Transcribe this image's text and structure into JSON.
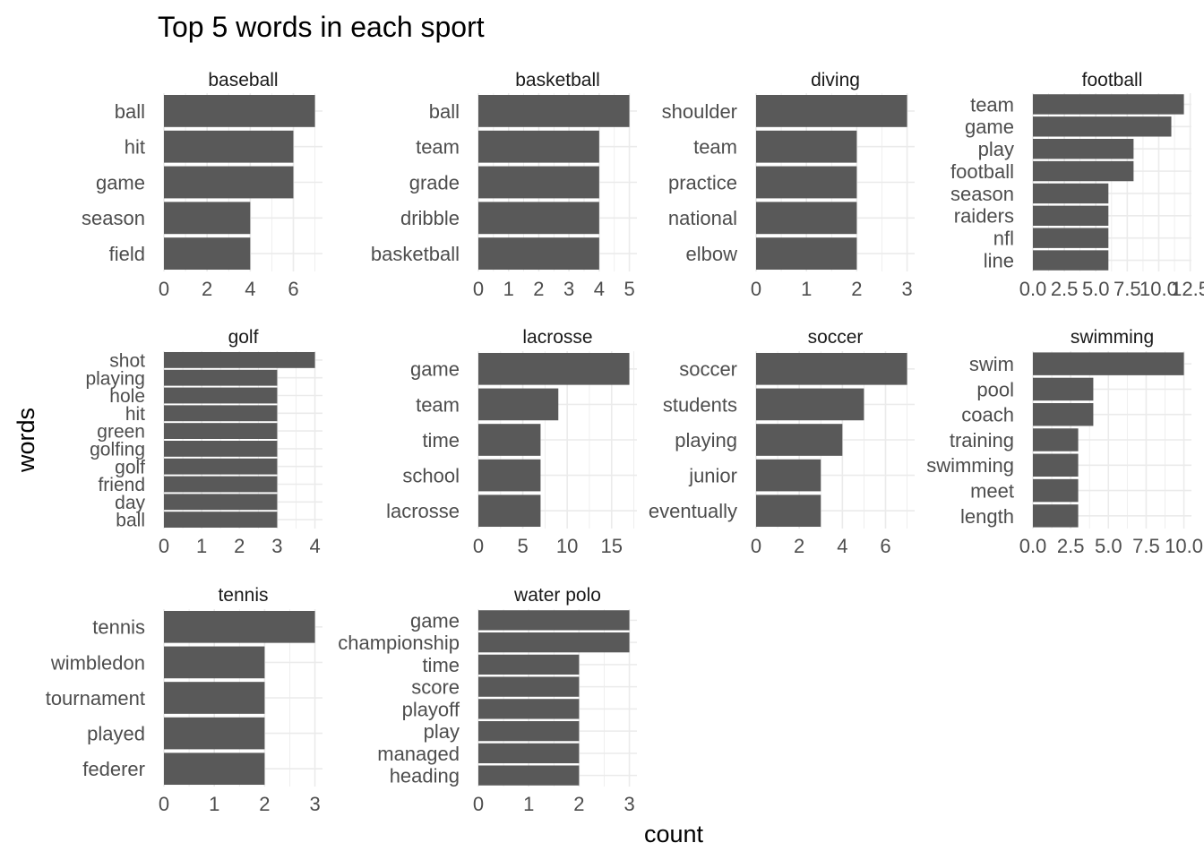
{
  "chart_data": {
    "type": "bar",
    "title": "Top 5 words in each sport",
    "xlabel": "count",
    "ylabel": "words",
    "orientation": "horizontal",
    "grid": true,
    "bar_color": "#595959",
    "grid_color": "#ebebeb",
    "panels": [
      {
        "name": "baseball",
        "xlim": [
          0,
          7.35
        ],
        "ticks": [
          "0",
          "2",
          "4",
          "6"
        ],
        "bars": [
          {
            "label": "ball",
            "value": 7
          },
          {
            "label": "hit",
            "value": 6
          },
          {
            "label": "game",
            "value": 6
          },
          {
            "label": "season",
            "value": 4
          },
          {
            "label": "field",
            "value": 4
          }
        ]
      },
      {
        "name": "basketball",
        "xlim": [
          0,
          5.25
        ],
        "ticks": [
          "0",
          "1",
          "2",
          "3",
          "4",
          "5"
        ],
        "bars": [
          {
            "label": "ball",
            "value": 5
          },
          {
            "label": "team",
            "value": 4
          },
          {
            "label": "grade",
            "value": 4
          },
          {
            "label": "dribble",
            "value": 4
          },
          {
            "label": "basketball",
            "value": 4
          }
        ]
      },
      {
        "name": "diving",
        "xlim": [
          0,
          3.15
        ],
        "ticks": [
          "0",
          "1",
          "2",
          "3"
        ],
        "bars": [
          {
            "label": "shoulder",
            "value": 3
          },
          {
            "label": "team",
            "value": 2
          },
          {
            "label": "practice",
            "value": 2
          },
          {
            "label": "national",
            "value": 2
          },
          {
            "label": "elbow",
            "value": 2
          }
        ]
      },
      {
        "name": "football",
        "xlim": [
          0,
          12.6
        ],
        "ticks": [
          "0.0",
          "2.5",
          "5.0",
          "7.5",
          "10.0",
          "12.5"
        ],
        "bars": [
          {
            "label": "team",
            "value": 12
          },
          {
            "label": "game",
            "value": 11
          },
          {
            "label": "play",
            "value": 8
          },
          {
            "label": "football",
            "value": 8
          },
          {
            "label": "season",
            "value": 6
          },
          {
            "label": "raiders",
            "value": 6
          },
          {
            "label": "nfl",
            "value": 6
          },
          {
            "label": "line",
            "value": 6
          }
        ]
      },
      {
        "name": "golf",
        "xlim": [
          0,
          4.2
        ],
        "ticks": [
          "0",
          "1",
          "2",
          "3",
          "4"
        ],
        "bars": [
          {
            "label": "shot",
            "value": 4
          },
          {
            "label": "playing",
            "value": 3
          },
          {
            "label": "hole",
            "value": 3
          },
          {
            "label": "hit",
            "value": 3
          },
          {
            "label": "green",
            "value": 3
          },
          {
            "label": "golfing",
            "value": 3
          },
          {
            "label": "golf",
            "value": 3
          },
          {
            "label": "friend",
            "value": 3
          },
          {
            "label": "day",
            "value": 3
          },
          {
            "label": "ball",
            "value": 3
          }
        ]
      },
      {
        "name": "lacrosse",
        "xlim": [
          0,
          17.85
        ],
        "ticks": [
          "0",
          "5",
          "10",
          "15"
        ],
        "bars": [
          {
            "label": "game",
            "value": 17
          },
          {
            "label": "team",
            "value": 9
          },
          {
            "label": "time",
            "value": 7
          },
          {
            "label": "school",
            "value": 7
          },
          {
            "label": "lacrosse",
            "value": 7
          }
        ]
      },
      {
        "name": "soccer",
        "xlim": [
          0,
          7.35
        ],
        "ticks": [
          "0",
          "2",
          "4",
          "6"
        ],
        "bars": [
          {
            "label": "soccer",
            "value": 7
          },
          {
            "label": "students",
            "value": 5
          },
          {
            "label": "playing",
            "value": 4
          },
          {
            "label": "junior",
            "value": 3
          },
          {
            "label": "eventually",
            "value": 3
          }
        ]
      },
      {
        "name": "swimming",
        "xlim": [
          0,
          10.5
        ],
        "ticks": [
          "0.0",
          "2.5",
          "5.0",
          "7.5",
          "10.0"
        ],
        "bars": [
          {
            "label": "swim",
            "value": 10
          },
          {
            "label": "pool",
            "value": 4
          },
          {
            "label": "coach",
            "value": 4
          },
          {
            "label": "training",
            "value": 3
          },
          {
            "label": "swimming",
            "value": 3
          },
          {
            "label": "meet",
            "value": 3
          },
          {
            "label": "length",
            "value": 3
          }
        ]
      },
      {
        "name": "tennis",
        "xlim": [
          0,
          3.15
        ],
        "ticks": [
          "0",
          "1",
          "2",
          "3"
        ],
        "bars": [
          {
            "label": "tennis",
            "value": 3
          },
          {
            "label": "wimbledon",
            "value": 2
          },
          {
            "label": "tournament",
            "value": 2
          },
          {
            "label": "played",
            "value": 2
          },
          {
            "label": "federer",
            "value": 2
          }
        ]
      },
      {
        "name": "water polo",
        "xlim": [
          0,
          3.15
        ],
        "ticks": [
          "0",
          "1",
          "2",
          "3"
        ],
        "bars": [
          {
            "label": "game",
            "value": 3
          },
          {
            "label": "championship",
            "value": 3
          },
          {
            "label": "time",
            "value": 2
          },
          {
            "label": "score",
            "value": 2
          },
          {
            "label": "playoff",
            "value": 2
          },
          {
            "label": "play",
            "value": 2
          },
          {
            "label": "managed",
            "value": 2
          },
          {
            "label": "heading",
            "value": 2
          }
        ]
      }
    ]
  }
}
